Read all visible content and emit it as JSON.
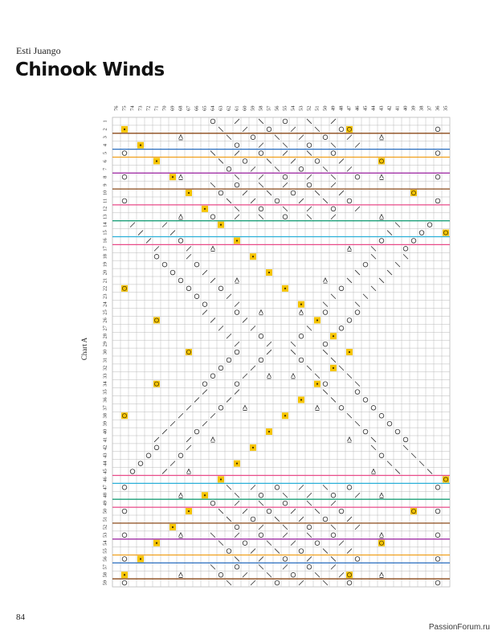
{
  "page": {
    "author": "Esti Juango",
    "title": "Chinook Winds",
    "page_number": "84",
    "watermark": "PassionForum.ru"
  },
  "chart": {
    "label": "Chart A",
    "columns_high_to_low": [
      76,
      75,
      74,
      73,
      72,
      71,
      70,
      69,
      68,
      67,
      66,
      65,
      64,
      63,
      62,
      61,
      60,
      59,
      58,
      57,
      56,
      55,
      54,
      53,
      52,
      51,
      50,
      49,
      48,
      47,
      46,
      45,
      44,
      43,
      42,
      41,
      40,
      39,
      38,
      37,
      36,
      35
    ],
    "row_count": 59,
    "colors": {
      "grid": "#b9b9b9",
      "symbol": "#2a2a2a",
      "bead_fill": "#f5c400",
      "bead_dot": "#3a2a00",
      "orange": "#f0a01e",
      "blue": "#2b6fc0",
      "purple": "#a334a8",
      "brown": "#8b4a1a",
      "pink": "#e84a88",
      "teal": "#1ea07a",
      "cyan": "#2ab0d8"
    },
    "legend_symbols": [
      "yarn-over-circle",
      "k2tog-slash",
      "ssk-backslash",
      "centered-double-decrease",
      "bead-square",
      "smiley-bead-square",
      "no-stitch-slash"
    ]
  }
}
